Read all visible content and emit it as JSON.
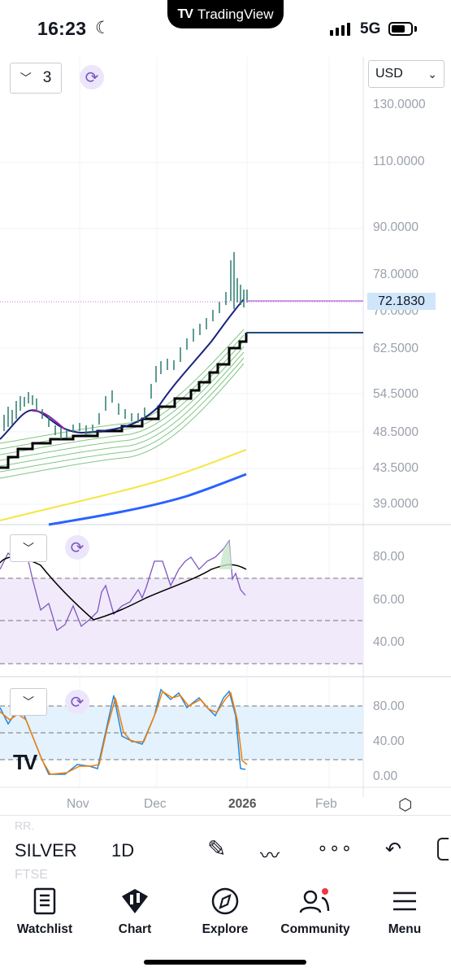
{
  "status_bar": {
    "time": "16:23",
    "app_name": "TradingView",
    "network": "5G"
  },
  "chart": {
    "layout_count": "3",
    "currency": "USD",
    "last_price": "72.1830",
    "price_axis_labels": [
      "130.0000",
      "110.0000",
      "90.0000",
      "78.0000",
      "70.0000",
      "62.5000",
      "54.5000",
      "48.5000",
      "43.5000",
      "39.0000"
    ],
    "rsi_axis_labels": [
      "80.00",
      "60.00",
      "40.00"
    ],
    "stoch_axis_labels": [
      "80.00",
      "40.00",
      "0.00"
    ],
    "time_axis_labels": [
      "Nov",
      "Dec",
      "2026",
      "Feb"
    ],
    "colors": {
      "price_line": "#c07ae0",
      "price_tag": "#cfe5fa",
      "blue_ma": "#2962ff",
      "yellow_ma": "#f5e642"
    }
  },
  "toolbar": {
    "symbol": "SILVER",
    "interval": "1D",
    "ghost_text_1": "RR.",
    "ghost_text_2": "FTSE"
  },
  "tabs": [
    {
      "label": "Watchlist",
      "icon": "watchlist-icon"
    },
    {
      "label": "Chart",
      "icon": "chart-icon"
    },
    {
      "label": "Explore",
      "icon": "compass-icon"
    },
    {
      "label": "Community",
      "icon": "community-icon"
    },
    {
      "label": "Menu",
      "icon": "menu-icon"
    }
  ]
}
